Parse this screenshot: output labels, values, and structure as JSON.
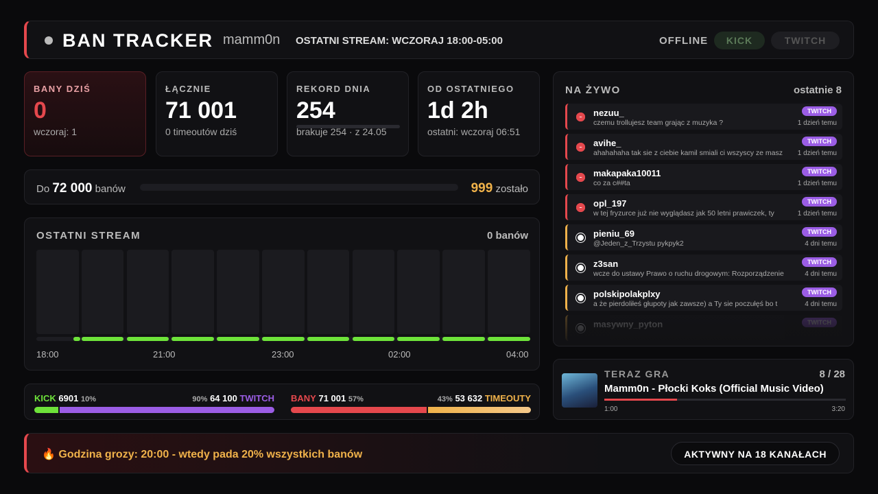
{
  "header": {
    "title": "BAN TRACKER",
    "channel": "mamm0n",
    "stream_info": "OSTATNI STREAM: WCZORAJ 18:00-05:00",
    "status": "OFFLINE",
    "buttons": [
      "KICK",
      "TWITCH"
    ]
  },
  "cards": [
    {
      "label": "BANY DZIŚ",
      "value": "0",
      "sub": "wczoraj: 1"
    },
    {
      "label": "ŁĄCZNIE",
      "value": "71 001",
      "sub": "0 timeoutów dziś"
    },
    {
      "label": "REKORD DNIA",
      "value": "254",
      "sub": "brakuje 254 · z 24.05"
    },
    {
      "label": "OD OSTATNIEGO",
      "value": "1d 2h",
      "sub": "ostatni: wczoraj 06:51"
    }
  ],
  "goal": {
    "prefix": "Do",
    "target": "72 000",
    "unit": "banów",
    "left": "999",
    "left_label": "zostało"
  },
  "last_stream": {
    "title": "OSTATNI STREAM",
    "total": "0 banów",
    "times": [
      "18:00",
      "21:00",
      "23:00",
      "02:00",
      "04:00"
    ]
  },
  "split": {
    "platforms": {
      "left_name": "KICK",
      "left_count": "6901",
      "left_share": {
        "value": 10,
        "label": "10%"
      },
      "right_share": {
        "value": 90,
        "label": "90%"
      },
      "right_count": "64 100",
      "right_name": "TWITCH"
    },
    "types": {
      "left_name": "BANY",
      "left_count": "71 001",
      "left_share": {
        "value": 57,
        "label": "57%"
      },
      "right_share": {
        "value": 43,
        "label": "43%"
      },
      "right_count": "53 632",
      "right_name": "TIMEOUTY"
    }
  },
  "live": {
    "title": "NA ŻYWO",
    "count": "ostatnie 8",
    "items": [
      {
        "kind": "ban",
        "user": "nezuu_",
        "message": "czemu trollujesz team grając z muzyka ?",
        "platform": "TWITCH",
        "time": "1 dzień temu"
      },
      {
        "kind": "ban",
        "user": "avihe_",
        "message": "ahahahaha tak sie z ciebie kamil smiali ci wszyscy ze masz",
        "platform": "TWITCH",
        "time": "1 dzień temu"
      },
      {
        "kind": "ban",
        "user": "makapaka10011",
        "message": "co za c##ta",
        "platform": "TWITCH",
        "time": "1 dzień temu"
      },
      {
        "kind": "ban",
        "user": "opl_197",
        "message": "w tej fryzurce już nie wyglądasz jak 50 letni prawiczek, ty",
        "platform": "TWITCH",
        "time": "1 dzień temu"
      },
      {
        "kind": "timeout",
        "user": "pieniu_69",
        "message": "@Jeden_z_Trzystu pykpyk2",
        "platform": "TWITCH",
        "time": "4 dni temu"
      },
      {
        "kind": "timeout",
        "user": "z3san",
        "message": "wcze do ustawy Prawo o ruchu drogowym: Rozporządzenie",
        "platform": "TWITCH",
        "time": "4 dni temu"
      },
      {
        "kind": "timeout",
        "user": "polskipolakplxy",
        "message": "a że pierdoliłeś głupoty jak zawsze) a Ty sie poczułęś bo t",
        "platform": "TWITCH",
        "time": "4 dni temu"
      },
      {
        "kind": "timeout",
        "user": "masywny_pyton",
        "platform": "TWITCH"
      }
    ]
  },
  "now_playing": {
    "label": "TERAZ GRA",
    "position": "8 / 28",
    "title": "Mamm0n - Płocki Koks (Official Music Video)",
    "elapsed": "1:00",
    "duration": "3:20"
  },
  "footer": {
    "text": "🔥 Godzina grozy: 20:00 - wtedy pada 20% wszystkich banów",
    "badge": "AKTYWNY NA 18 KANAŁACH"
  }
}
